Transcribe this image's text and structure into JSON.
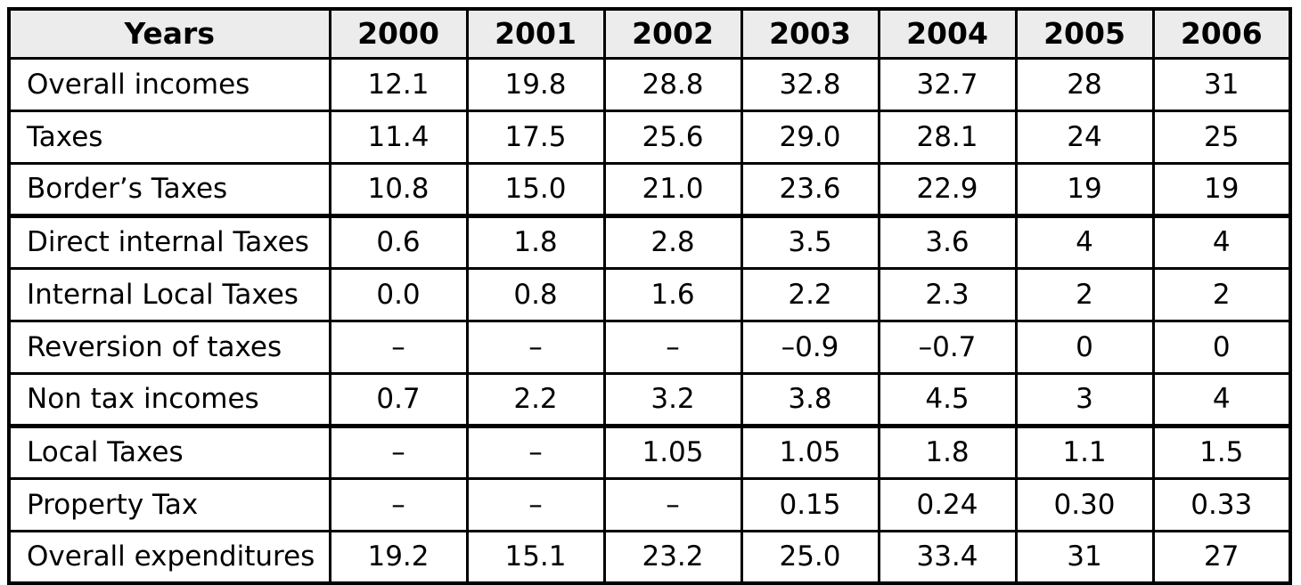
{
  "table": {
    "header": {
      "label_col": "Years",
      "years": [
        "2000",
        "2001",
        "2002",
        "2003",
        "2004",
        "2005",
        "2006"
      ]
    },
    "rows": [
      {
        "label": "Overall incomes",
        "values": [
          "12.1",
          "19.8",
          "28.8",
          "32.8",
          "32.7",
          "28",
          "31"
        ]
      },
      {
        "label": "Taxes",
        "values": [
          "11.4",
          "17.5",
          "25.6",
          "29.0",
          "28.1",
          "24",
          "25"
        ]
      },
      {
        "label": "Border’s Taxes",
        "values": [
          "10.8",
          "15.0",
          "21.0",
          "23.6",
          "22.9",
          "19",
          "19"
        ]
      },
      {
        "label": "Direct internal Taxes",
        "values": [
          "0.6",
          "1.8",
          "2.8",
          "3.5",
          "3.6",
          "4",
          "4"
        ]
      },
      {
        "label": "Internal Local Taxes",
        "values": [
          "0.0",
          "0.8",
          "1.6",
          "2.2",
          "2.3",
          "2",
          "2"
        ]
      },
      {
        "label": "Reversion of taxes",
        "values": [
          "–",
          "–",
          "–",
          "–0.9",
          "–0.7",
          "0",
          "0"
        ]
      },
      {
        "label": "Non tax incomes",
        "values": [
          "0.7",
          "2.2",
          "3.2",
          "3.8",
          "4.5",
          "3",
          "4"
        ]
      },
      {
        "label": "Local Taxes",
        "values": [
          "–",
          "–",
          "1.05",
          "1.05",
          "1.8",
          "1.1",
          "1.5"
        ]
      },
      {
        "label": "Property Tax",
        "values": [
          "–",
          "–",
          "–",
          "0.15",
          "0.24",
          "0.30",
          "0.33"
        ]
      },
      {
        "label": "Overall expenditures",
        "values": [
          "19.2",
          "15.1",
          "23.2",
          "25.0",
          "33.4",
          "31",
          "27"
        ]
      }
    ],
    "colors": {
      "header_bg": "#ececec",
      "border": "#000000",
      "text": "#000000",
      "body_bg": "#ffffff"
    }
  }
}
